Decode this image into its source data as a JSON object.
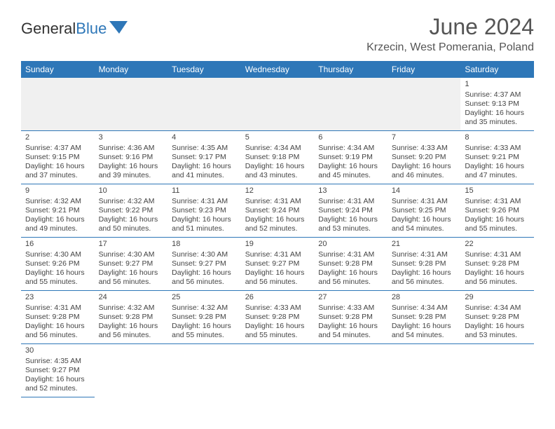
{
  "logo": {
    "word1": "General",
    "word2": "Blue"
  },
  "title": "June 2024",
  "location": "Krzecin, West Pomerania, Poland",
  "colors": {
    "header_bg": "#2e77b8",
    "header_text": "#ffffff",
    "row_border": "#2e77b8",
    "empty_bg": "#f0f0f0",
    "text": "#444444",
    "title_text": "#555555"
  },
  "day_headers": [
    "Sunday",
    "Monday",
    "Tuesday",
    "Wednesday",
    "Thursday",
    "Friday",
    "Saturday"
  ],
  "weeks": [
    [
      null,
      null,
      null,
      null,
      null,
      null,
      {
        "n": "1",
        "sr": "Sunrise: 4:37 AM",
        "ss": "Sunset: 9:13 PM",
        "d1": "Daylight: 16 hours",
        "d2": "and 35 minutes."
      }
    ],
    [
      {
        "n": "2",
        "sr": "Sunrise: 4:37 AM",
        "ss": "Sunset: 9:15 PM",
        "d1": "Daylight: 16 hours",
        "d2": "and 37 minutes."
      },
      {
        "n": "3",
        "sr": "Sunrise: 4:36 AM",
        "ss": "Sunset: 9:16 PM",
        "d1": "Daylight: 16 hours",
        "d2": "and 39 minutes."
      },
      {
        "n": "4",
        "sr": "Sunrise: 4:35 AM",
        "ss": "Sunset: 9:17 PM",
        "d1": "Daylight: 16 hours",
        "d2": "and 41 minutes."
      },
      {
        "n": "5",
        "sr": "Sunrise: 4:34 AM",
        "ss": "Sunset: 9:18 PM",
        "d1": "Daylight: 16 hours",
        "d2": "and 43 minutes."
      },
      {
        "n": "6",
        "sr": "Sunrise: 4:34 AM",
        "ss": "Sunset: 9:19 PM",
        "d1": "Daylight: 16 hours",
        "d2": "and 45 minutes."
      },
      {
        "n": "7",
        "sr": "Sunrise: 4:33 AM",
        "ss": "Sunset: 9:20 PM",
        "d1": "Daylight: 16 hours",
        "d2": "and 46 minutes."
      },
      {
        "n": "8",
        "sr": "Sunrise: 4:33 AM",
        "ss": "Sunset: 9:21 PM",
        "d1": "Daylight: 16 hours",
        "d2": "and 47 minutes."
      }
    ],
    [
      {
        "n": "9",
        "sr": "Sunrise: 4:32 AM",
        "ss": "Sunset: 9:21 PM",
        "d1": "Daylight: 16 hours",
        "d2": "and 49 minutes."
      },
      {
        "n": "10",
        "sr": "Sunrise: 4:32 AM",
        "ss": "Sunset: 9:22 PM",
        "d1": "Daylight: 16 hours",
        "d2": "and 50 minutes."
      },
      {
        "n": "11",
        "sr": "Sunrise: 4:31 AM",
        "ss": "Sunset: 9:23 PM",
        "d1": "Daylight: 16 hours",
        "d2": "and 51 minutes."
      },
      {
        "n": "12",
        "sr": "Sunrise: 4:31 AM",
        "ss": "Sunset: 9:24 PM",
        "d1": "Daylight: 16 hours",
        "d2": "and 52 minutes."
      },
      {
        "n": "13",
        "sr": "Sunrise: 4:31 AM",
        "ss": "Sunset: 9:24 PM",
        "d1": "Daylight: 16 hours",
        "d2": "and 53 minutes."
      },
      {
        "n": "14",
        "sr": "Sunrise: 4:31 AM",
        "ss": "Sunset: 9:25 PM",
        "d1": "Daylight: 16 hours",
        "d2": "and 54 minutes."
      },
      {
        "n": "15",
        "sr": "Sunrise: 4:31 AM",
        "ss": "Sunset: 9:26 PM",
        "d1": "Daylight: 16 hours",
        "d2": "and 55 minutes."
      }
    ],
    [
      {
        "n": "16",
        "sr": "Sunrise: 4:30 AM",
        "ss": "Sunset: 9:26 PM",
        "d1": "Daylight: 16 hours",
        "d2": "and 55 minutes."
      },
      {
        "n": "17",
        "sr": "Sunrise: 4:30 AM",
        "ss": "Sunset: 9:27 PM",
        "d1": "Daylight: 16 hours",
        "d2": "and 56 minutes."
      },
      {
        "n": "18",
        "sr": "Sunrise: 4:30 AM",
        "ss": "Sunset: 9:27 PM",
        "d1": "Daylight: 16 hours",
        "d2": "and 56 minutes."
      },
      {
        "n": "19",
        "sr": "Sunrise: 4:31 AM",
        "ss": "Sunset: 9:27 PM",
        "d1": "Daylight: 16 hours",
        "d2": "and 56 minutes."
      },
      {
        "n": "20",
        "sr": "Sunrise: 4:31 AM",
        "ss": "Sunset: 9:28 PM",
        "d1": "Daylight: 16 hours",
        "d2": "and 56 minutes."
      },
      {
        "n": "21",
        "sr": "Sunrise: 4:31 AM",
        "ss": "Sunset: 9:28 PM",
        "d1": "Daylight: 16 hours",
        "d2": "and 56 minutes."
      },
      {
        "n": "22",
        "sr": "Sunrise: 4:31 AM",
        "ss": "Sunset: 9:28 PM",
        "d1": "Daylight: 16 hours",
        "d2": "and 56 minutes."
      }
    ],
    [
      {
        "n": "23",
        "sr": "Sunrise: 4:31 AM",
        "ss": "Sunset: 9:28 PM",
        "d1": "Daylight: 16 hours",
        "d2": "and 56 minutes."
      },
      {
        "n": "24",
        "sr": "Sunrise: 4:32 AM",
        "ss": "Sunset: 9:28 PM",
        "d1": "Daylight: 16 hours",
        "d2": "and 56 minutes."
      },
      {
        "n": "25",
        "sr": "Sunrise: 4:32 AM",
        "ss": "Sunset: 9:28 PM",
        "d1": "Daylight: 16 hours",
        "d2": "and 55 minutes."
      },
      {
        "n": "26",
        "sr": "Sunrise: 4:33 AM",
        "ss": "Sunset: 9:28 PM",
        "d1": "Daylight: 16 hours",
        "d2": "and 55 minutes."
      },
      {
        "n": "27",
        "sr": "Sunrise: 4:33 AM",
        "ss": "Sunset: 9:28 PM",
        "d1": "Daylight: 16 hours",
        "d2": "and 54 minutes."
      },
      {
        "n": "28",
        "sr": "Sunrise: 4:34 AM",
        "ss": "Sunset: 9:28 PM",
        "d1": "Daylight: 16 hours",
        "d2": "and 54 minutes."
      },
      {
        "n": "29",
        "sr": "Sunrise: 4:34 AM",
        "ss": "Sunset: 9:28 PM",
        "d1": "Daylight: 16 hours",
        "d2": "and 53 minutes."
      }
    ],
    [
      {
        "n": "30",
        "sr": "Sunrise: 4:35 AM",
        "ss": "Sunset: 9:27 PM",
        "d1": "Daylight: 16 hours",
        "d2": "and 52 minutes."
      },
      null,
      null,
      null,
      null,
      null,
      null
    ]
  ]
}
